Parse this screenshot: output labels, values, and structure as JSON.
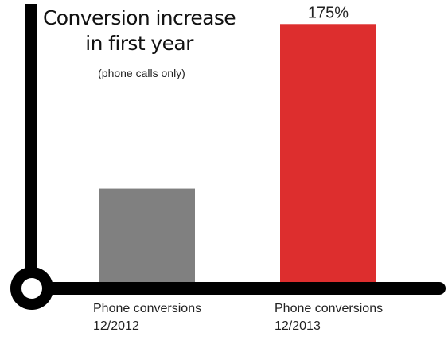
{
  "chart_data": {
    "type": "bar",
    "title_lines": [
      "Conversion increase",
      "in first year"
    ],
    "subtitle": "(phone calls only)",
    "categories": [
      {
        "line1": "Phone conversions",
        "line2": "12/2012"
      },
      {
        "line1": "Phone conversions",
        "line2": "12/2013"
      }
    ],
    "values": [
      100,
      275
    ],
    "data_labels": [
      "",
      "175%"
    ],
    "colors": [
      "#808080",
      "#dd2e2e"
    ],
    "ylim": [
      0,
      282
    ],
    "grid": false,
    "legend": "none",
    "axis_color": "#000000"
  }
}
